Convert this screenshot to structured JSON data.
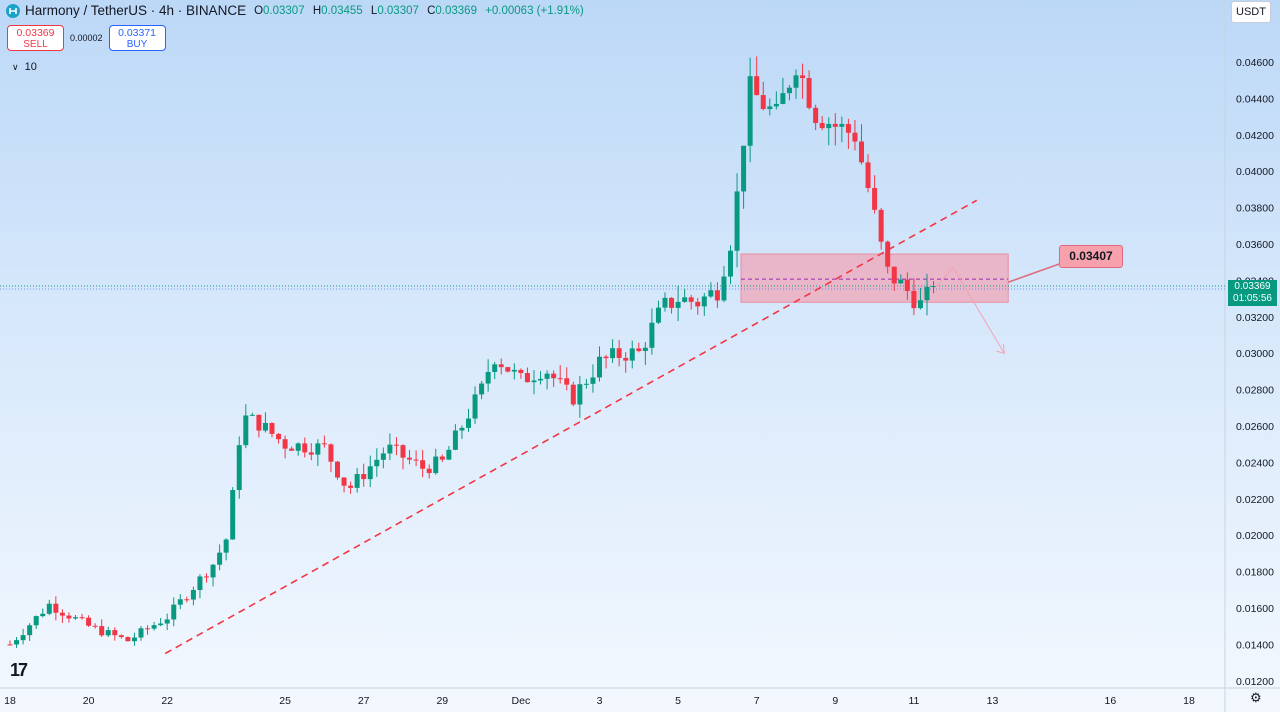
{
  "header": {
    "symbol": "Harmony / TetherUS · 4h · BINANCE",
    "ohlc": [
      {
        "k": "O",
        "v": "0.03307"
      },
      {
        "k": "H",
        "v": "0.03455"
      },
      {
        "k": "L",
        "v": "0.03307"
      },
      {
        "k": "C",
        "v": "0.03369"
      }
    ],
    "change": "+0.00063 (+1.91%)"
  },
  "trade": {
    "sell_price": "0.03369",
    "sell_label": "SELL",
    "spread": "0.00002",
    "buy_price": "0.03371",
    "buy_label": "BUY"
  },
  "volume_label": "10",
  "currency_button": "USDT",
  "last_price": {
    "price": "0.03369",
    "countdown": "01:05:56"
  },
  "zone_label": "0.03407",
  "colors": {
    "up": "#089981",
    "down": "#f23645",
    "zone": "#f2a2b3",
    "trendline": "#f23645"
  },
  "chart_data": {
    "type": "candlestick",
    "timeframe": "4h",
    "y_axis": {
      "ylim": [
        0.011,
        0.0487
      ],
      "tick_values": [
        0.046,
        0.044,
        0.042,
        0.04,
        0.038,
        0.036,
        0.034,
        0.032,
        0.03,
        0.028,
        0.026,
        0.024,
        0.022,
        0.02,
        0.018,
        0.016,
        0.014,
        0.012
      ],
      "tick_labels": [
        "0.04600",
        "0.04400",
        "0.04200",
        "0.04000",
        "0.03800",
        "0.03600",
        "0.03400",
        "0.03200",
        "0.03000",
        "0.02800",
        "0.02600",
        "0.02400",
        "0.02200",
        "0.02000",
        "0.01800",
        "0.01600",
        "0.01400",
        "0.01200"
      ]
    },
    "x_axis": {
      "ticks": [
        {
          "day": 0,
          "label": "18"
        },
        {
          "day": 2,
          "label": "20"
        },
        {
          "day": 4,
          "label": "22"
        },
        {
          "day": 7,
          "label": "25"
        },
        {
          "day": 9,
          "label": "27"
        },
        {
          "day": 11,
          "label": "29"
        },
        {
          "day": 13,
          "label": "Dec"
        },
        {
          "day": 15,
          "label": "3"
        },
        {
          "day": 17,
          "label": "5"
        },
        {
          "day": 19,
          "label": "7"
        },
        {
          "day": 21,
          "label": "9"
        },
        {
          "day": 23,
          "label": "11"
        },
        {
          "day": 25,
          "label": "13"
        },
        {
          "day": 28,
          "label": "16"
        },
        {
          "day": 30,
          "label": "18"
        }
      ]
    },
    "last_close": 0.03369,
    "waypoints": [
      [
        0,
        0.014
      ],
      [
        1,
        0.0162
      ],
      [
        2,
        0.015
      ],
      [
        2.6,
        0.0145
      ],
      [
        3,
        0.0142
      ],
      [
        3.6,
        0.015
      ],
      [
        4,
        0.0155
      ],
      [
        4.6,
        0.017
      ],
      [
        5.2,
        0.0185
      ],
      [
        5.55,
        0.02
      ],
      [
        5.9,
        0.0265
      ],
      [
        6.3,
        0.0262
      ],
      [
        7,
        0.025
      ],
      [
        8,
        0.0248
      ],
      [
        8.6,
        0.0225
      ],
      [
        9,
        0.0234
      ],
      [
        9.6,
        0.0248
      ],
      [
        10.5,
        0.0237
      ],
      [
        11,
        0.024
      ],
      [
        11.5,
        0.026
      ],
      [
        12,
        0.028
      ],
      [
        12.3,
        0.0299
      ],
      [
        13,
        0.0285
      ],
      [
        13.6,
        0.0292
      ],
      [
        14.3,
        0.0275
      ],
      [
        15,
        0.0295
      ],
      [
        15.6,
        0.03
      ],
      [
        16,
        0.03
      ],
      [
        16.6,
        0.0325
      ],
      [
        17,
        0.033
      ],
      [
        17.5,
        0.0328
      ],
      [
        18,
        0.0335
      ],
      [
        18.4,
        0.0367
      ],
      [
        18.8,
        0.0445
      ],
      [
        19.5,
        0.043
      ],
      [
        20,
        0.046
      ],
      [
        20.5,
        0.0432
      ],
      [
        21,
        0.0425
      ],
      [
        21.5,
        0.042
      ],
      [
        21.9,
        0.0385
      ],
      [
        22.3,
        0.0345
      ],
      [
        22.8,
        0.0335
      ],
      [
        23.2,
        0.0326
      ],
      [
        23.5,
        0.0337
      ]
    ],
    "series_labels": [],
    "annotations": {
      "resistance_zone": {
        "top": 0.03545,
        "bottom": 0.0328,
        "from_day": 18.6,
        "to_day": 25.4,
        "mid_line": 0.03407
      },
      "trendline": {
        "from": [
          3.95,
          0.0135
        ],
        "to": [
          24.6,
          0.0384
        ],
        "style": "dashed"
      },
      "projection_arrow": {
        "from": [
          24.0,
          0.0347
        ],
        "to": [
          25.3,
          0.03
        ]
      }
    }
  }
}
